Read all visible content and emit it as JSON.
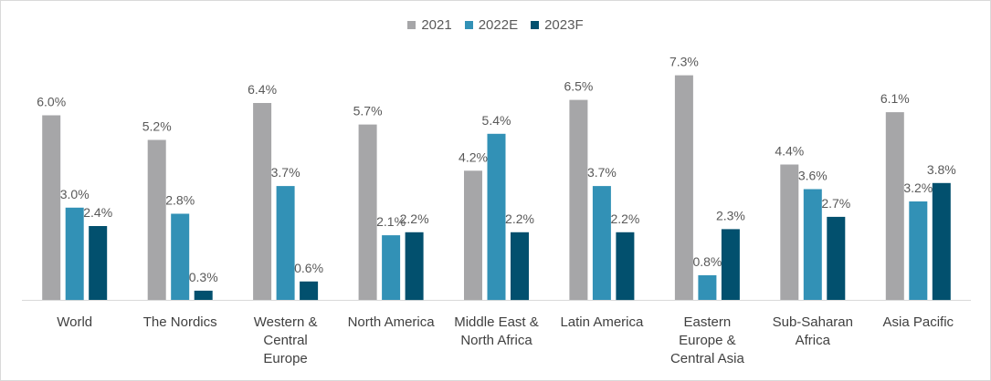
{
  "chart_data": {
    "type": "bar",
    "categories": [
      [
        "World"
      ],
      [
        "The Nordics"
      ],
      [
        "Western &",
        "Central",
        "Europe"
      ],
      [
        "North America"
      ],
      [
        "Middle East &",
        "North Africa"
      ],
      [
        "Latin America"
      ],
      [
        "Eastern",
        "Europe &",
        "Central Asia"
      ],
      [
        "Sub-Saharan",
        "Africa"
      ],
      [
        "Asia Pacific"
      ]
    ],
    "series": [
      {
        "name": "2021",
        "color": "#a6a6a8",
        "values": [
          6.0,
          5.2,
          6.4,
          5.7,
          4.2,
          6.5,
          7.3,
          4.4,
          6.1
        ],
        "labels": [
          "6.0%",
          "5.2%",
          "6.4%",
          "5.7%",
          "4.2%",
          "6.5%",
          "7.3%",
          "4.4%",
          "6.1%"
        ]
      },
      {
        "name": "2022E",
        "color": "#3291b6",
        "values": [
          3.0,
          2.8,
          3.7,
          2.1,
          5.4,
          3.7,
          0.8,
          3.6,
          3.2
        ],
        "labels": [
          "3.0%",
          "2.8%",
          "3.7%",
          "2.1%",
          "5.4%",
          "3.7%",
          "0.8%",
          "3.6%",
          "3.2%"
        ]
      },
      {
        "name": "2023F",
        "color": "#02506e",
        "values": [
          2.4,
          0.3,
          0.6,
          2.2,
          2.2,
          2.2,
          2.3,
          2.7,
          3.8
        ],
        "labels": [
          "2.4%",
          "0.3%",
          "0.6%",
          "2.2%",
          "2.2%",
          "2.2%",
          "2.3%",
          "2.7%",
          "3.8%"
        ]
      }
    ],
    "ylim": [
      0,
      8
    ],
    "grid": false,
    "legend_position": "top-center",
    "title": "",
    "xlabel": "",
    "ylabel": ""
  }
}
